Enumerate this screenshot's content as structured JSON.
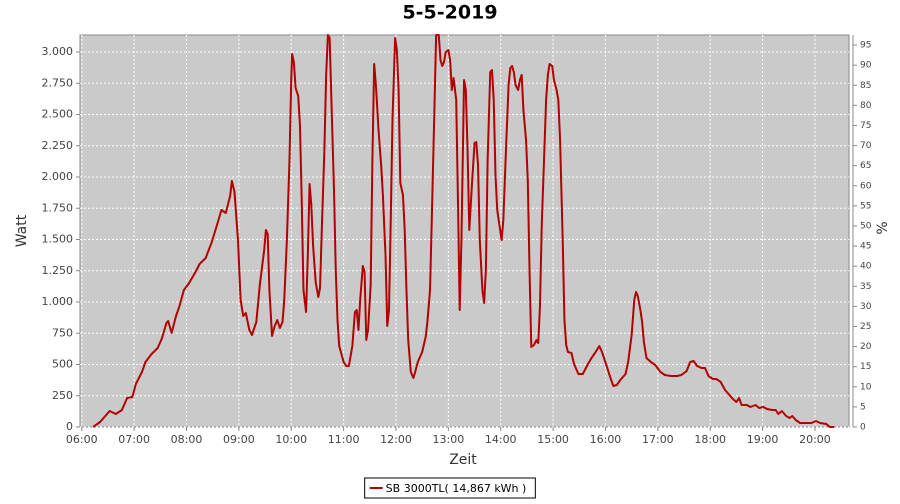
{
  "chart_data": {
    "type": "line",
    "title": "5-5-2019",
    "x_label": "Zeit",
    "y_label": "Watt",
    "y2_label": "%",
    "xlim": [
      "05:58",
      "20:39"
    ],
    "xticks": [
      "06:00",
      "07:00",
      "08:00",
      "09:00",
      "10:00",
      "11:00",
      "12:00",
      "13:00",
      "14:00",
      "15:00",
      "16:00",
      "17:00",
      "18:00",
      "19:00",
      "20:00"
    ],
    "ylim": [
      0,
      3136
    ],
    "yticks": [
      0,
      250,
      500,
      750,
      {
        "value": 1000,
        "label": "1.000"
      },
      {
        "value": 1250,
        "label": "1.250"
      },
      {
        "value": 1500,
        "label": "1.500"
      },
      {
        "value": 1750,
        "label": "1.750"
      },
      {
        "value": 2000,
        "label": "2.000"
      },
      {
        "value": 2250,
        "label": "2.250"
      },
      {
        "value": 2500,
        "label": "2.500"
      },
      {
        "value": 2750,
        "label": "2.750"
      },
      {
        "value": 3000,
        "label": "3.000"
      }
    ],
    "y2lim": [
      0,
      97.5
    ],
    "y2ticks": [
      0,
      5,
      10,
      15,
      20,
      25,
      30,
      35,
      40,
      45,
      50,
      55,
      60,
      65,
      70,
      75,
      80,
      85,
      90,
      95
    ],
    "grid": true,
    "legend": "bottom",
    "x": [
      "06:13",
      "06:21",
      "06:28",
      "06:32",
      "06:39",
      "06:46",
      "06:52",
      "06:58",
      "07:02",
      "07:09",
      "07:13",
      "07:20",
      "07:27",
      "07:32",
      "07:37",
      "07:39",
      "07:43",
      "07:48",
      "07:52",
      "07:57",
      "08:03",
      "08:11",
      "08:15",
      "08:22",
      "08:29",
      "08:36",
      "08:40",
      "08:45",
      "08:50",
      "08:52",
      "08:55",
      "08:59",
      "09:02",
      "09:05",
      "09:08",
      "09:12",
      "09:15",
      "09:20",
      "09:24",
      "09:29",
      "09:31",
      "09:33",
      "09:35",
      "09:38",
      "09:41",
      "09:44",
      "09:47",
      "09:50",
      "09:52",
      "09:55",
      "09:58",
      "10:00",
      "10:01",
      "10:03",
      "10:05",
      "10:08",
      "10:10",
      "10:12",
      "10:14",
      "10:17",
      "10:19",
      "10:21",
      "10:23",
      "10:25",
      "10:28",
      "10:31",
      "10:33",
      "10:35",
      "10:38",
      "10:40",
      "10:42",
      "10:44",
      "10:46",
      "10:49",
      "10:51",
      "10:53",
      "10:55",
      "11:00",
      "11:03",
      "11:06",
      "11:10",
      "11:13",
      "11:15",
      "11:17",
      "11:19",
      "11:22",
      "11:24",
      "11:26",
      "11:28",
      "11:31",
      "11:33",
      "11:35",
      "11:37",
      "11:40",
      "11:43",
      "11:45",
      "11:48",
      "11:50",
      "11:52",
      "11:54",
      "11:56",
      "11:59",
      "12:01",
      "12:03",
      "12:05",
      "12:08",
      "12:10",
      "12:12",
      "12:14",
      "12:17",
      "12:20",
      "12:22",
      "12:25",
      "12:30",
      "12:34",
      "12:36",
      "12:39",
      "12:41",
      "12:44",
      "12:46",
      "12:49",
      "12:51",
      "12:53",
      "12:55",
      "12:57",
      "13:00",
      "13:02",
      "13:04",
      "13:06",
      "13:09",
      "13:11",
      "13:13",
      "13:15",
      "13:18",
      "13:20",
      "13:22",
      "13:24",
      "13:27",
      "13:30",
      "13:32",
      "13:34",
      "13:36",
      "13:39",
      "13:41",
      "13:43",
      "13:45",
      "13:48",
      "13:50",
      "13:52",
      "13:54",
      "13:56",
      "13:59",
      "14:01",
      "14:03",
      "14:06",
      "14:09",
      "14:11",
      "14:13",
      "14:15",
      "14:17",
      "14:20",
      "14:22",
      "14:24",
      "14:26",
      "14:29",
      "14:31",
      "14:33",
      "14:35",
      "14:38",
      "14:41",
      "14:43",
      "14:45",
      "14:47",
      "14:50",
      "14:52",
      "14:54",
      "14:56",
      "14:59",
      "15:01",
      "15:04",
      "15:06",
      "15:08",
      "15:11",
      "15:13",
      "15:15",
      "15:17",
      "15:21",
      "15:24",
      "15:29",
      "15:34",
      "15:40",
      "15:44",
      "15:48",
      "15:53",
      "15:56",
      "16:01",
      "16:05",
      "16:09",
      "16:13",
      "16:17",
      "16:23",
      "16:26",
      "16:30",
      "16:33",
      "16:35",
      "16:37",
      "16:40",
      "16:42",
      "16:44",
      "16:47",
      "16:52",
      "16:57",
      "17:03",
      "17:08",
      "17:15",
      "17:22",
      "17:27",
      "17:33",
      "17:37",
      "17:41",
      "17:45",
      "17:50",
      "17:54",
      "17:58",
      "18:03",
      "18:07",
      "18:12",
      "18:17",
      "18:22",
      "18:26",
      "18:30",
      "18:33",
      "18:36",
      "18:42",
      "18:46",
      "18:52",
      "18:56",
      "19:01",
      "19:05",
      "19:11",
      "19:15",
      "19:18",
      "19:22",
      "19:27",
      "19:31",
      "19:34",
      "19:38",
      "19:43",
      "19:50",
      "19:56",
      "20:01",
      "20:06",
      "20:13",
      "20:17",
      "20:22"
    ],
    "series": [
      {
        "name": "SB 3000TL( 14,867 kWh )",
        "color": "#b30000",
        "values": [
          0,
          40,
          96,
          128,
          104,
          136,
          232,
          240,
          344,
          440,
          520,
          584,
          632,
          712,
          832,
          848,
          752,
          888,
          968,
          1096,
          1152,
          1248,
          1304,
          1352,
          1480,
          1640,
          1736,
          1712,
          1848,
          1968,
          1880,
          1496,
          1016,
          888,
          912,
          776,
          736,
          840,
          1136,
          1416,
          1576,
          1544,
          1096,
          728,
          808,
          856,
          792,
          840,
          1016,
          1496,
          2136,
          2776,
          2984,
          2920,
          2712,
          2648,
          2416,
          1816,
          1096,
          920,
          1376,
          1944,
          1776,
          1456,
          1160,
          1040,
          1112,
          1576,
          2216,
          2816,
          3136,
          3112,
          2616,
          1896,
          1256,
          856,
          648,
          520,
          488,
          488,
          648,
          920,
          936,
          776,
          1016,
          1288,
          1240,
          696,
          776,
          1136,
          2136,
          2904,
          2736,
          2376,
          2096,
          1856,
          1376,
          808,
          936,
          1656,
          2456,
          3112,
          3016,
          2696,
          1952,
          1856,
          1576,
          1096,
          696,
          440,
          392,
          440,
          520,
          600,
          720,
          840,
          1096,
          1656,
          2536,
          3136,
          3136,
          2936,
          2888,
          2920,
          3000,
          3016,
          2936,
          2696,
          2792,
          2616,
          1816,
          936,
          1496,
          2776,
          2696,
          2216,
          1576,
          1936,
          2272,
          2280,
          2096,
          1496,
          1096,
          992,
          1256,
          2136,
          2840,
          2856,
          2616,
          2016,
          1736,
          1592,
          1496,
          1656,
          2216,
          2736,
          2872,
          2888,
          2840,
          2736,
          2696,
          2776,
          2816,
          2536,
          2296,
          1976,
          1256,
          640,
          656,
          696,
          672,
          976,
          1616,
          2216,
          2616,
          2816,
          2904,
          2888,
          2776,
          2696,
          2616,
          2296,
          1496,
          856,
          656,
          600,
          592,
          504,
          424,
          424,
          504,
          552,
          592,
          648,
          600,
          496,
          408,
          328,
          336,
          376,
          424,
          520,
          736,
          1016,
          1080,
          1048,
          936,
          840,
          680,
          552,
          520,
          496,
          440,
          416,
          408,
          408,
          416,
          448,
          520,
          528,
          488,
          472,
          472,
          408,
          384,
          384,
          360,
          296,
          256,
          224,
          200,
          232,
          176,
          176,
          160,
          176,
          152,
          160,
          144,
          136,
          136,
          104,
          128,
          88,
          72,
          88,
          56,
          32,
          32,
          32,
          48,
          32,
          24,
          0,
          0
        ]
      }
    ]
  }
}
